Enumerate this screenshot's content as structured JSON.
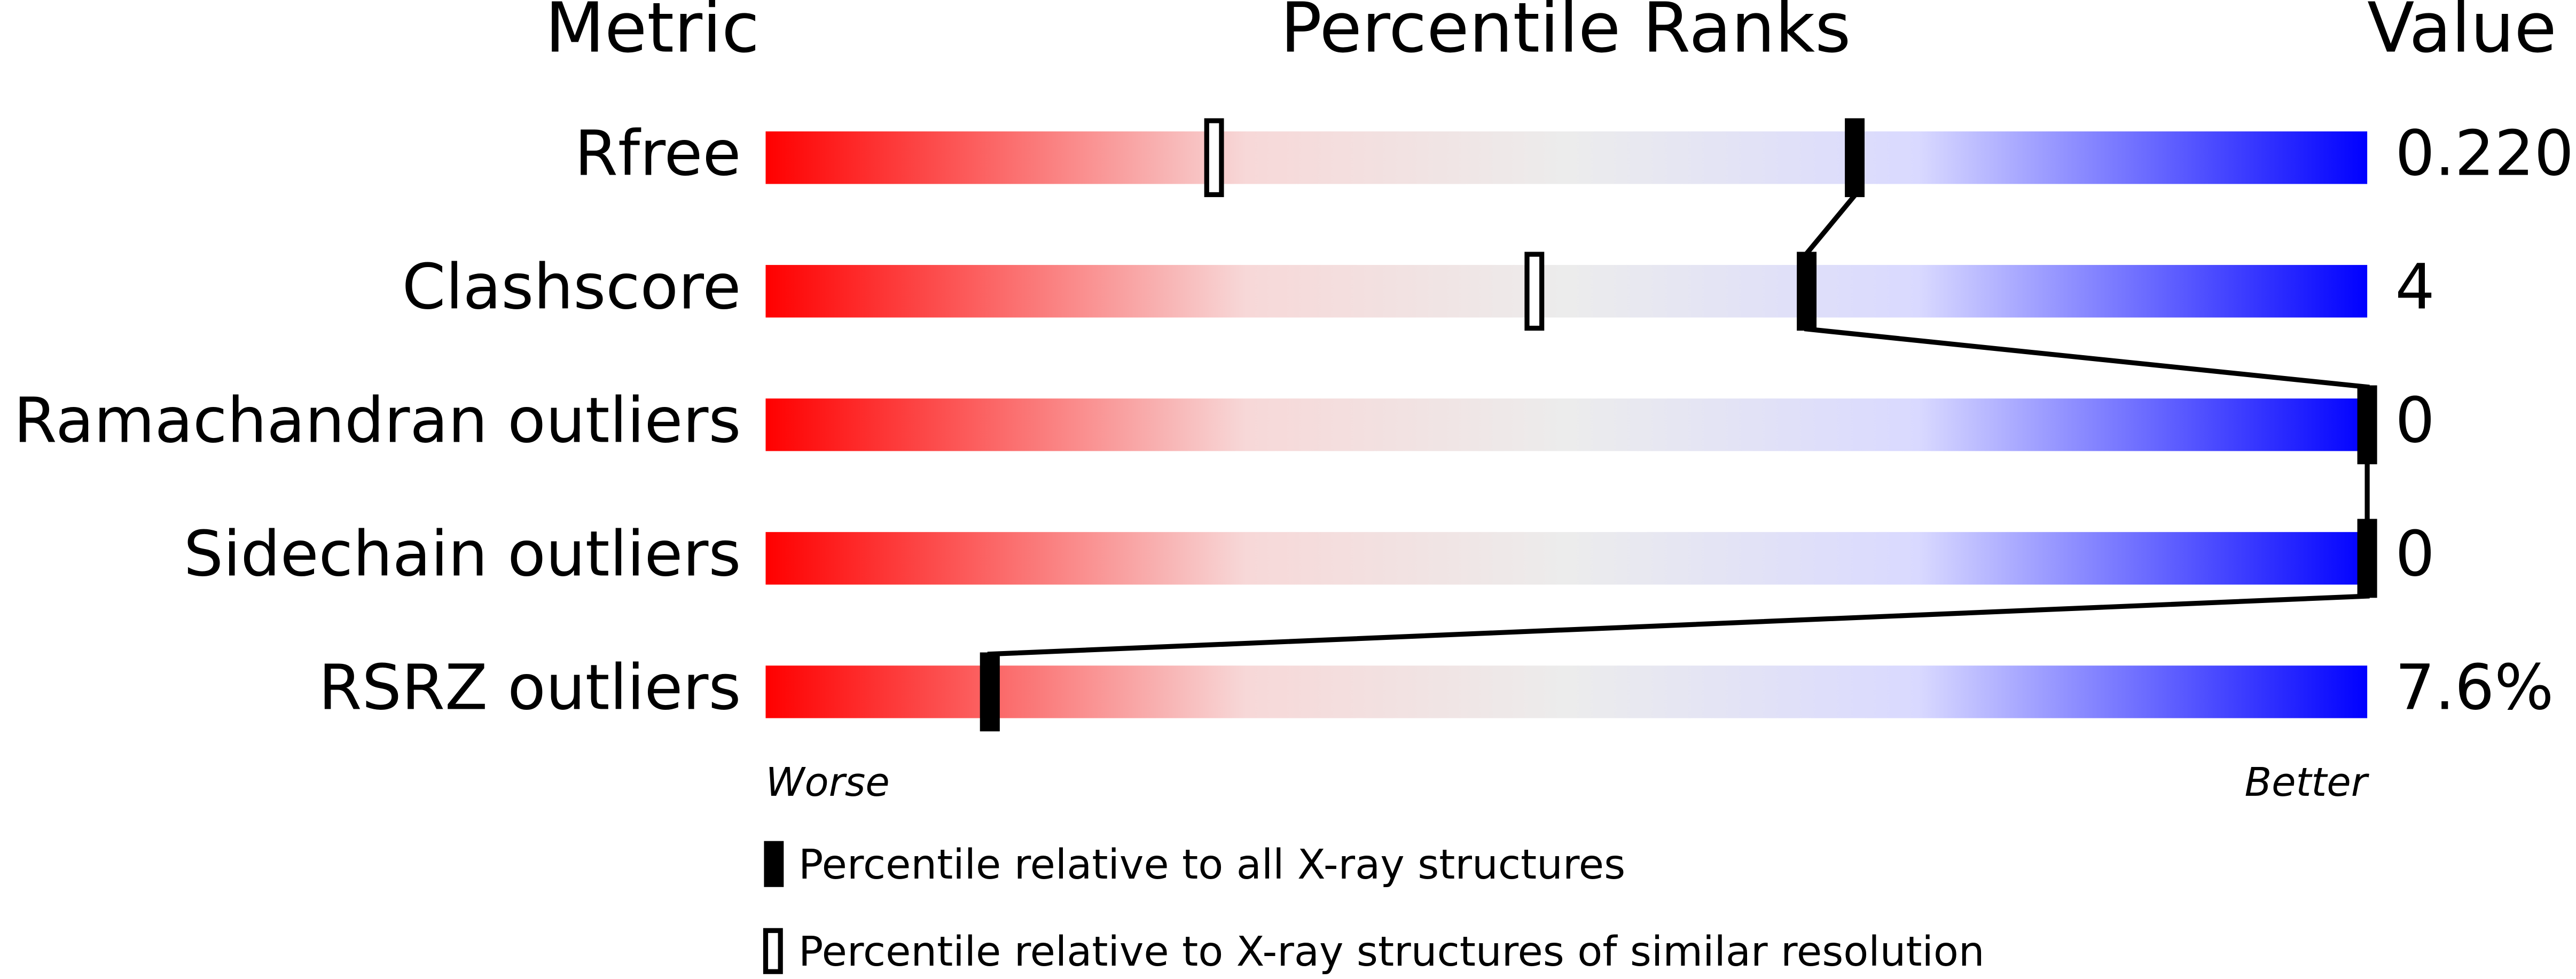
{
  "chart_data": {
    "type": "percentile-slider",
    "headers": {
      "metric": "Metric",
      "ranks": "Percentile Ranks",
      "value": "Value"
    },
    "categories": [
      "Rfree",
      "Clashscore",
      "Ramachandran outliers",
      "Sidechain outliers",
      "RSRZ outliers"
    ],
    "values": [
      0.22,
      4,
      0,
      0,
      7.6
    ],
    "value_labels": [
      "0.220",
      "4",
      "0",
      "0",
      "7.6%"
    ],
    "series": [
      {
        "name": "Percentile relative to all X-ray structures",
        "color": "#000000",
        "filled": true,
        "values": [
          68,
          65,
          100,
          100,
          14
        ]
      },
      {
        "name": "Percentile relative to X-ray structures of similar resolution",
        "color": "#000000",
        "filled": false,
        "values": [
          28,
          48,
          100,
          100,
          14
        ]
      }
    ],
    "xlim": [
      0,
      100
    ],
    "worse_label": "Worse",
    "better_label": "Better"
  }
}
